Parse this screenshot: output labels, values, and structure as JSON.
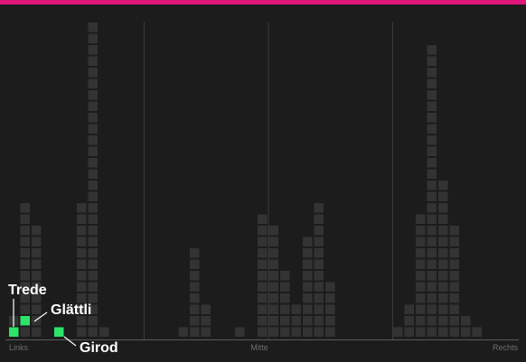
{
  "colors": {
    "background": "#1c1c1c",
    "accent_bar": "#e0157a",
    "cell": "#333333",
    "highlight": "#2de36a",
    "divider": "#3a3a3a",
    "baseline": "#5a5a5a",
    "axis_text": "#6e6e6e",
    "label_text": "#ffffff"
  },
  "chart_data": {
    "type": "bar",
    "subtype": "stacked-cell dot histogram",
    "x_ticks": [
      "Links",
      "Mitte",
      "Rechts"
    ],
    "x_range": [
      0,
      44
    ],
    "columns": [
      {
        "x": 0,
        "count": 2
      },
      {
        "x": 1,
        "count": 12
      },
      {
        "x": 2,
        "count": 10
      },
      {
        "x": 6,
        "count": 12
      },
      {
        "x": 7,
        "count": 28
      },
      {
        "x": 8,
        "count": 1
      },
      {
        "x": 15,
        "count": 1
      },
      {
        "x": 16,
        "count": 8
      },
      {
        "x": 17,
        "count": 3
      },
      {
        "x": 20,
        "count": 1
      },
      {
        "x": 22,
        "count": 11
      },
      {
        "x": 23,
        "count": 10
      },
      {
        "x": 24,
        "count": 6
      },
      {
        "x": 25,
        "count": 3
      },
      {
        "x": 26,
        "count": 9
      },
      {
        "x": 27,
        "count": 12
      },
      {
        "x": 28,
        "count": 5
      },
      {
        "x": 34,
        "count": 1
      },
      {
        "x": 35,
        "count": 3
      },
      {
        "x": 36,
        "count": 11
      },
      {
        "x": 37,
        "count": 26
      },
      {
        "x": 38,
        "count": 14
      },
      {
        "x": 39,
        "count": 10
      },
      {
        "x": 40,
        "count": 2
      },
      {
        "x": 41,
        "count": 1
      }
    ],
    "highlighted": [
      {
        "name": "Trede",
        "x": 0,
        "level": 1
      },
      {
        "name": "Glättli",
        "x": 1,
        "level": 2
      },
      {
        "name": "Girod",
        "x": 4,
        "level": 1
      }
    ],
    "dividers_at": [
      11,
      22,
      33
    ]
  }
}
